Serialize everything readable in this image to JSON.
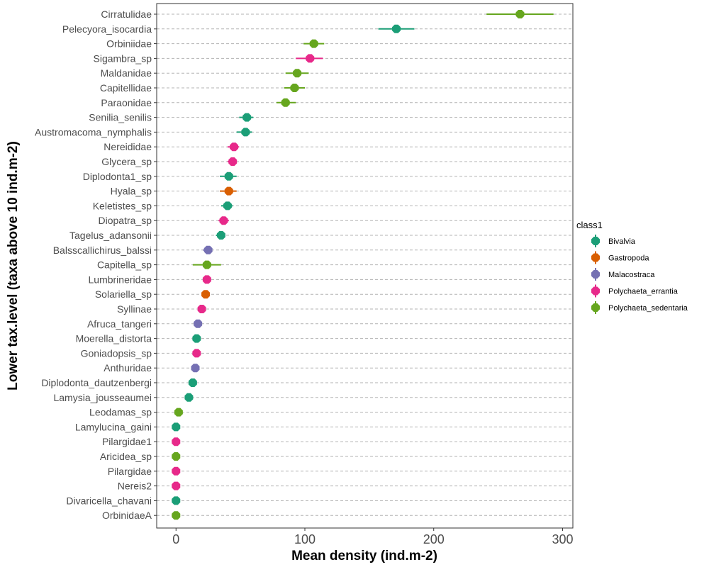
{
  "chart_data": {
    "type": "scatter",
    "xlabel": "Mean density (ind.m-2)",
    "ylabel": "Lower tax.level (taxa above 10 ind.m-2)",
    "xlim": [
      -15,
      308
    ],
    "xticks": [
      0,
      100,
      200,
      300
    ],
    "grid": "horizontal dashed lines per category",
    "legend": {
      "title": "class1",
      "position": "right",
      "classes": [
        {
          "name": "Bivalvia",
          "color": "#1b9e77"
        },
        {
          "name": "Gastropoda",
          "color": "#d95f02"
        },
        {
          "name": "Malacostraca",
          "color": "#7570b3"
        },
        {
          "name": "Polychaeta_errantia",
          "color": "#e7298a"
        },
        {
          "name": "Polychaeta_sedentaria",
          "color": "#66a61e"
        }
      ]
    },
    "points": [
      {
        "taxon": "Cirratulidae",
        "class": "Polychaeta_sedentaria",
        "mean": 267,
        "low": 241,
        "high": 293
      },
      {
        "taxon": "Pelecyora_isocardia",
        "class": "Bivalvia",
        "mean": 171,
        "low": 157,
        "high": 185
      },
      {
        "taxon": "Orbiniidae",
        "class": "Polychaeta_sedentaria",
        "mean": 107,
        "low": 99,
        "high": 115
      },
      {
        "taxon": "Sigambra_sp",
        "class": "Polychaeta_errantia",
        "mean": 104,
        "low": 93,
        "high": 114
      },
      {
        "taxon": "Maldanidae",
        "class": "Polychaeta_sedentaria",
        "mean": 94,
        "low": 85,
        "high": 103
      },
      {
        "taxon": "Capitellidae",
        "class": "Polychaeta_sedentaria",
        "mean": 92,
        "low": 84,
        "high": 100
      },
      {
        "taxon": "Paraonidae",
        "class": "Polychaeta_sedentaria",
        "mean": 85,
        "low": 78,
        "high": 93
      },
      {
        "taxon": "Senilia_senilis",
        "class": "Bivalvia",
        "mean": 55,
        "low": 49,
        "high": 60
      },
      {
        "taxon": "Austromacoma_nymphalis",
        "class": "Bivalvia",
        "mean": 54,
        "low": 47,
        "high": 59
      },
      {
        "taxon": "Nereididae",
        "class": "Polychaeta_errantia",
        "mean": 45,
        "low": 40,
        "high": 49
      },
      {
        "taxon": "Glycera_sp",
        "class": "Polychaeta_errantia",
        "mean": 44,
        "low": 40,
        "high": 47
      },
      {
        "taxon": "Diplodonta1_sp",
        "class": "Bivalvia",
        "mean": 41,
        "low": 34,
        "high": 47
      },
      {
        "taxon": "Hyala_sp",
        "class": "Gastropoda",
        "mean": 41,
        "low": 34,
        "high": 47
      },
      {
        "taxon": "Keletistes_sp",
        "class": "Bivalvia",
        "mean": 40,
        "low": 35,
        "high": 44
      },
      {
        "taxon": "Diopatra_sp",
        "class": "Polychaeta_errantia",
        "mean": 37,
        "low": 33,
        "high": 41
      },
      {
        "taxon": "Tagelus_adansonii",
        "class": "Bivalvia",
        "mean": 35,
        "low": 31,
        "high": 38
      },
      {
        "taxon": "Balsscallichirus_balssi",
        "class": "Malacostraca",
        "mean": 25,
        "low": 21,
        "high": 28
      },
      {
        "taxon": "Capitella_sp",
        "class": "Polychaeta_sedentaria",
        "mean": 24,
        "low": 13,
        "high": 35
      },
      {
        "taxon": "Lumbrineridae",
        "class": "Polychaeta_errantia",
        "mean": 24,
        "low": 21,
        "high": 27
      },
      {
        "taxon": "Solariella_sp",
        "class": "Gastropoda",
        "mean": 23,
        "low": 20,
        "high": 26
      },
      {
        "taxon": "Syllinae",
        "class": "Polychaeta_errantia",
        "mean": 20,
        "low": 17,
        "high": 23
      },
      {
        "taxon": "Afruca_tangeri",
        "class": "Malacostraca",
        "mean": 17,
        "low": 14,
        "high": 20
      },
      {
        "taxon": "Moerella_distorta",
        "class": "Bivalvia",
        "mean": 16,
        "low": 13,
        "high": 19
      },
      {
        "taxon": "Goniadopsis_sp",
        "class": "Polychaeta_errantia",
        "mean": 16,
        "low": 13,
        "high": 18
      },
      {
        "taxon": "Anthuridae",
        "class": "Malacostraca",
        "mean": 15,
        "low": 12,
        "high": 17
      },
      {
        "taxon": "Diplodonta_dautzenbergi",
        "class": "Bivalvia",
        "mean": 13,
        "low": 10,
        "high": 16
      },
      {
        "taxon": "Lamysia_jousseaumei",
        "class": "Bivalvia",
        "mean": 10,
        "low": 7,
        "high": 13
      },
      {
        "taxon": "Leodamas_sp",
        "class": "Polychaeta_sedentaria",
        "mean": 2,
        "low": 0,
        "high": 4
      },
      {
        "taxon": "Lamylucina_gaini",
        "class": "Bivalvia",
        "mean": 0,
        "low": 0,
        "high": 1
      },
      {
        "taxon": "Pilargidae1",
        "class": "Polychaeta_errantia",
        "mean": 0,
        "low": 0,
        "high": 1
      },
      {
        "taxon": "Aricidea_sp",
        "class": "Polychaeta_sedentaria",
        "mean": 0,
        "low": 0,
        "high": 1
      },
      {
        "taxon": "Pilargidae",
        "class": "Polychaeta_errantia",
        "mean": 0,
        "low": 0,
        "high": 1
      },
      {
        "taxon": "Nereis2",
        "class": "Polychaeta_errantia",
        "mean": 0,
        "low": 0,
        "high": 1
      },
      {
        "taxon": "Divaricella_chavani",
        "class": "Bivalvia",
        "mean": 0,
        "low": 0,
        "high": 1
      },
      {
        "taxon": "OrbinidaeA",
        "class": "Polychaeta_sedentaria",
        "mean": 0,
        "low": 0,
        "high": 1
      }
    ]
  }
}
